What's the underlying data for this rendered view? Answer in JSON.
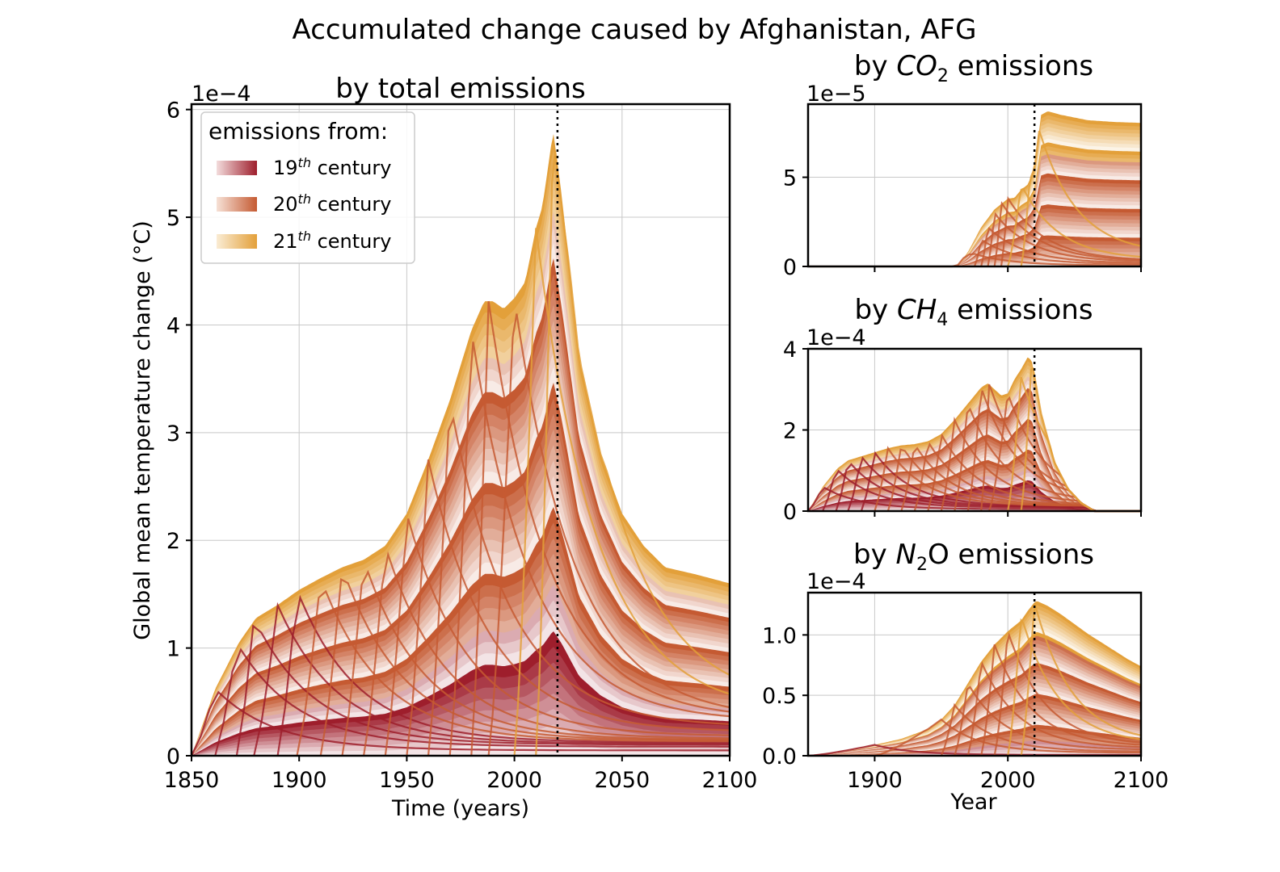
{
  "title": "Accumulated change caused by Afghanistan, AFG",
  "colors": {
    "c19": "#9e1e2c",
    "c20": "#c55a32",
    "c21": "#e3a03a",
    "grid": "#c8c8c8",
    "axis": "#000000"
  },
  "legend": {
    "title": "emissions from:",
    "items": [
      {
        "label": "19",
        "suffix": "th",
        "rest": " century",
        "color": "#9e1e2c"
      },
      {
        "label": "20",
        "suffix": "th",
        "rest": " century",
        "color": "#c55a32"
      },
      {
        "label": "21",
        "suffix": "th",
        "rest": " century",
        "color": "#e3a03a"
      }
    ]
  },
  "chart_data": [
    {
      "type": "area",
      "title": "by total emissions",
      "xlabel": "Time (years)",
      "ylabel": "Global mean temperature change (°C)",
      "offset_text": "1e−4",
      "xlim": [
        1850,
        2100
      ],
      "ylim": [
        0,
        6.05
      ],
      "xticks": [
        1850,
        1900,
        1950,
        2000,
        2050,
        2100
      ],
      "yticks": [
        0,
        1,
        2,
        3,
        4,
        5,
        6
      ],
      "ytick_labels": [
        "0",
        "1",
        "2",
        "3",
        "4",
        "5",
        "6"
      ],
      "grid": true,
      "vline": 2020,
      "legend_position": "upper-left",
      "envelope": {
        "x": [
          1850,
          1861,
          1872,
          1880,
          1890,
          1900,
          1910,
          1920,
          1930,
          1940,
          1950,
          1960,
          1970,
          1980,
          1986,
          1990,
          1995,
          2000,
          2005,
          2010,
          2013,
          2018,
          2022,
          2030,
          2040,
          2050,
          2060,
          2070,
          2085,
          2100
        ],
        "y": [
          0,
          0.62,
          1.05,
          1.28,
          1.4,
          1.54,
          1.65,
          1.75,
          1.82,
          1.95,
          2.25,
          2.75,
          3.3,
          3.95,
          4.22,
          4.22,
          4.15,
          4.25,
          4.4,
          4.9,
          5.1,
          5.8,
          5.2,
          3.7,
          2.8,
          2.25,
          1.95,
          1.75,
          1.68,
          1.6
        ]
      },
      "peaks": [
        {
          "x": 1861,
          "y": 0.62,
          "century": 19
        },
        {
          "x": 1871,
          "y": 1.05,
          "century": 19
        },
        {
          "x": 1879,
          "y": 1.28,
          "century": 19
        },
        {
          "x": 1890,
          "y": 1.4,
          "century": 19
        },
        {
          "x": 1899,
          "y": 1.54,
          "century": 19
        },
        {
          "x": 1910,
          "y": 1.65,
          "century": 20
        },
        {
          "x": 1920,
          "y": 1.75,
          "century": 20
        },
        {
          "x": 1930,
          "y": 1.82,
          "century": 20
        },
        {
          "x": 1940,
          "y": 1.95,
          "century": 20
        },
        {
          "x": 1950,
          "y": 2.25,
          "century": 20
        },
        {
          "x": 1960,
          "y": 2.75,
          "century": 20
        },
        {
          "x": 1970,
          "y": 3.3,
          "century": 20
        },
        {
          "x": 1980,
          "y": 3.95,
          "century": 20
        },
        {
          "x": 1988,
          "y": 4.22,
          "century": 20
        },
        {
          "x": 2000,
          "y": 4.25,
          "century": 20
        },
        {
          "x": 2010,
          "y": 4.9,
          "century": 21
        },
        {
          "x": 2018,
          "y": 5.8,
          "century": 21
        }
      ]
    },
    {
      "type": "area",
      "title_prefix": "by ",
      "title_species": "CO",
      "title_sub": "2",
      "title_suffix": " emissions",
      "offset_text": "1e−5",
      "xlim": [
        1850,
        2100
      ],
      "ylim": [
        0,
        9.1
      ],
      "yticks": [
        0,
        5
      ],
      "ytick_labels": [
        "0",
        "5"
      ],
      "grid": true,
      "vline": 2020,
      "envelope": {
        "x": [
          1850,
          1960,
          1963,
          1970,
          1980,
          1990,
          2000,
          2005,
          2010,
          2015,
          2020,
          2025,
          2030,
          2040,
          2060,
          2080,
          2100
        ],
        "y": [
          0,
          0,
          0.1,
          0.8,
          2.2,
          3.2,
          3.8,
          3.85,
          4.3,
          4.6,
          5.5,
          8.5,
          8.7,
          8.5,
          8.2,
          8.1,
          8.05
        ]
      },
      "peaks": [
        {
          "x": 1975,
          "y": 0.7,
          "century": 20
        },
        {
          "x": 1980,
          "y": 1.5,
          "century": 20
        },
        {
          "x": 1985,
          "y": 2.2,
          "century": 20
        },
        {
          "x": 1990,
          "y": 3.0,
          "century": 20
        },
        {
          "x": 1995,
          "y": 3.6,
          "century": 20
        },
        {
          "x": 2000,
          "y": 3.85,
          "century": 20
        },
        {
          "x": 2010,
          "y": 4.6,
          "century": 21
        },
        {
          "x": 2020,
          "y": 8.6,
          "century": 21
        }
      ]
    },
    {
      "type": "area",
      "title_prefix": "by ",
      "title_species": "CH",
      "title_sub": "4",
      "title_suffix": " emissions",
      "offset_text": "1e−4",
      "xlim": [
        1850,
        2100
      ],
      "ylim": [
        0,
        4.0
      ],
      "yticks": [
        0,
        2,
        4
      ],
      "ytick_labels": [
        "0",
        "2",
        "4"
      ],
      "grid": true,
      "vline": 2020,
      "envelope": {
        "x": [
          1850,
          1861,
          1872,
          1880,
          1890,
          1900,
          1910,
          1920,
          1930,
          1940,
          1950,
          1960,
          1970,
          1980,
          1985,
          1990,
          1995,
          2000,
          2005,
          2010,
          2015,
          2018,
          2025,
          2035,
          2045,
          2055,
          2065,
          2100
        ],
        "y": [
          0,
          0.6,
          1.05,
          1.25,
          1.35,
          1.45,
          1.55,
          1.62,
          1.65,
          1.72,
          1.9,
          2.25,
          2.65,
          3.05,
          3.15,
          3.0,
          2.85,
          2.9,
          3.25,
          3.5,
          3.8,
          3.7,
          2.4,
          1.2,
          0.55,
          0.2,
          0.0,
          0.0
        ]
      },
      "peaks": [
        {
          "x": 1861,
          "y": 0.6,
          "century": 19
        },
        {
          "x": 1871,
          "y": 1.05,
          "century": 19
        },
        {
          "x": 1880,
          "y": 1.25,
          "century": 19
        },
        {
          "x": 1890,
          "y": 1.35,
          "century": 19
        },
        {
          "x": 1900,
          "y": 1.45,
          "century": 19
        },
        {
          "x": 1910,
          "y": 1.55,
          "century": 20
        },
        {
          "x": 1920,
          "y": 1.62,
          "century": 20
        },
        {
          "x": 1930,
          "y": 1.65,
          "century": 20
        },
        {
          "x": 1940,
          "y": 1.72,
          "century": 20
        },
        {
          "x": 1950,
          "y": 1.9,
          "century": 20
        },
        {
          "x": 1960,
          "y": 2.25,
          "century": 20
        },
        {
          "x": 1970,
          "y": 2.65,
          "century": 20
        },
        {
          "x": 1980,
          "y": 3.05,
          "century": 20
        },
        {
          "x": 1986,
          "y": 3.15,
          "century": 20
        },
        {
          "x": 2000,
          "y": 2.9,
          "century": 20
        },
        {
          "x": 2010,
          "y": 3.3,
          "century": 21
        },
        {
          "x": 2018,
          "y": 3.8,
          "century": 21
        }
      ]
    },
    {
      "type": "area",
      "title_prefix": "by ",
      "title_species": "N",
      "title_sub": "2",
      "title_suffix": "O emissions",
      "offset_text": "1e−4",
      "xlabel": "Year",
      "xlim": [
        1850,
        2100
      ],
      "ylim": [
        0,
        1.35
      ],
      "xticks": [
        1900,
        2000,
        2100
      ],
      "yticks": [
        0.0,
        0.5,
        1.0
      ],
      "ytick_labels": [
        "0.0",
        "0.5",
        "1.0"
      ],
      "grid": true,
      "vline": 2020,
      "envelope": {
        "x": [
          1850,
          1870,
          1890,
          1900,
          1920,
          1940,
          1950,
          1960,
          1970,
          1980,
          1990,
          2000,
          2010,
          2015,
          2020,
          2022,
          2030,
          2040,
          2050,
          2060,
          2070,
          2080,
          2090,
          2100
        ],
        "y": [
          0,
          0.03,
          0.07,
          0.09,
          0.14,
          0.22,
          0.3,
          0.42,
          0.6,
          0.78,
          0.92,
          1.03,
          1.12,
          1.2,
          1.27,
          1.28,
          1.24,
          1.17,
          1.09,
          1.01,
          0.94,
          0.87,
          0.8,
          0.74
        ]
      },
      "peaks": [
        {
          "x": 1900,
          "y": 0.09,
          "century": 19
        },
        {
          "x": 1950,
          "y": 0.3,
          "century": 20
        },
        {
          "x": 1960,
          "y": 0.42,
          "century": 20
        },
        {
          "x": 1970,
          "y": 0.6,
          "century": 20
        },
        {
          "x": 1980,
          "y": 0.78,
          "century": 20
        },
        {
          "x": 1990,
          "y": 0.92,
          "century": 20
        },
        {
          "x": 2000,
          "y": 1.03,
          "century": 20
        },
        {
          "x": 2010,
          "y": 1.16,
          "century": 21
        },
        {
          "x": 2020,
          "y": 1.27,
          "century": 21
        }
      ]
    }
  ]
}
